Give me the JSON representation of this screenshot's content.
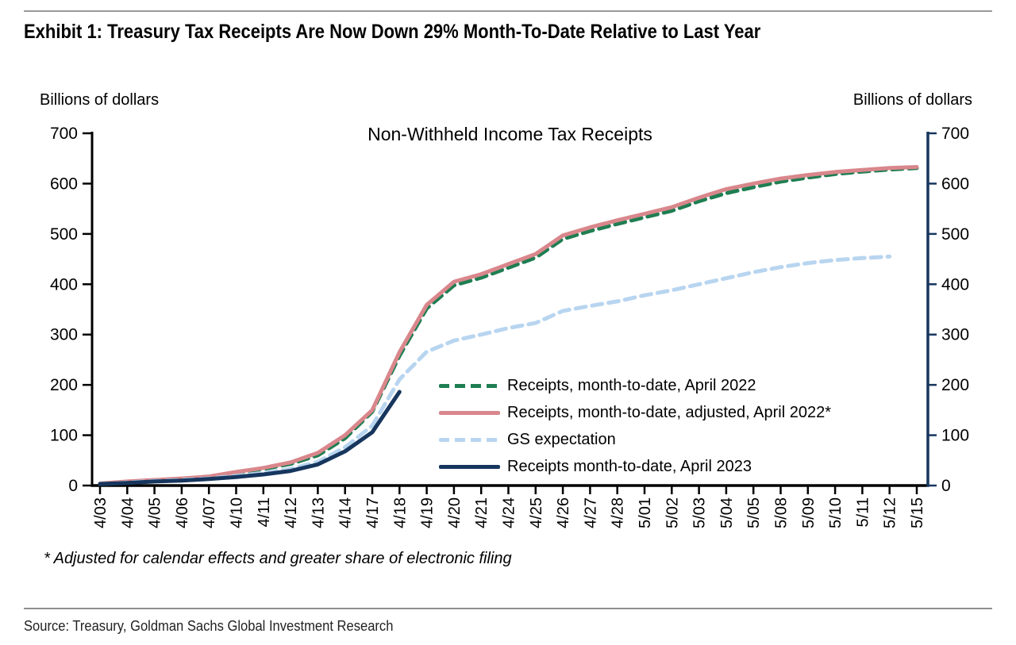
{
  "header": {
    "exhibit_title": "Exhibit 1: Treasury Tax Receipts Are Now Down 29% Month-To-Date Relative to Last Year"
  },
  "footnote": {
    "text": "* Adjusted for calendar effects and greater share of electronic filing"
  },
  "source": {
    "text": "Source: Treasury, Goldman Sachs Global Investment Research"
  },
  "chart_data": {
    "type": "line",
    "title": "Non-Withheld Income Tax Receipts",
    "axis_label_left": "Billions of dollars",
    "axis_label_right": "Billions of dollars",
    "ylim": [
      0,
      700
    ],
    "ytick_step": 100,
    "yticks": [
      0,
      100,
      200,
      300,
      400,
      500,
      600,
      700
    ],
    "grid": false,
    "legend_position": "inside-right-middle",
    "axis_color_left": "#000000",
    "axis_color_right": "#17365e",
    "categories": [
      "4/03",
      "4/04",
      "4/05",
      "4/06",
      "4/07",
      "4/10",
      "4/11",
      "4/12",
      "4/13",
      "4/14",
      "4/17",
      "4/18",
      "4/19",
      "4/20",
      "4/21",
      "4/24",
      "4/25",
      "4/26",
      "4/27",
      "4/28",
      "5/01",
      "5/02",
      "5/03",
      "5/04",
      "5/05",
      "5/08",
      "5/09",
      "5/10",
      "5/11",
      "5/12",
      "5/15"
    ],
    "series": [
      {
        "name": "Receipts, month-to-date, April 2022",
        "color": "#1f7e52",
        "style": "dashed",
        "values": [
          4,
          7,
          10,
          13,
          17,
          25,
          33,
          43,
          60,
          94,
          147,
          258,
          352,
          398,
          413,
          433,
          453,
          490,
          506,
          520,
          533,
          546,
          565,
          581,
          593,
          604,
          612,
          619,
          624,
          628,
          631
        ]
      },
      {
        "name": "Receipts, month-to-date, adjusted, April 2022*",
        "color": "#d9878c",
        "style": "solid",
        "values": [
          4,
          8,
          11,
          14,
          18,
          27,
          35,
          46,
          65,
          100,
          150,
          265,
          359,
          405,
          420,
          440,
          460,
          497,
          513,
          527,
          540,
          553,
          572,
          589,
          600,
          610,
          617,
          623,
          627,
          631,
          633
        ]
      },
      {
        "name": "GS expectation",
        "color": "#b8d5f0",
        "style": "dashed",
        "values": [
          3,
          6,
          9,
          11,
          14,
          19,
          25,
          33,
          47,
          76,
          119,
          211,
          266,
          288,
          300,
          313,
          323,
          347,
          357,
          366,
          378,
          388,
          400,
          412,
          424,
          434,
          442,
          448,
          452,
          455,
          null
        ]
      },
      {
        "name": "Receipts month-to-date, April 2023",
        "color": "#17365e",
        "style": "solid",
        "values": [
          3,
          5,
          8,
          10,
          13,
          17,
          22,
          29,
          42,
          68,
          106,
          186,
          null,
          null,
          null,
          null,
          null,
          null,
          null,
          null,
          null,
          null,
          null,
          null,
          null,
          null,
          null,
          null,
          null,
          null,
          null
        ]
      }
    ]
  }
}
